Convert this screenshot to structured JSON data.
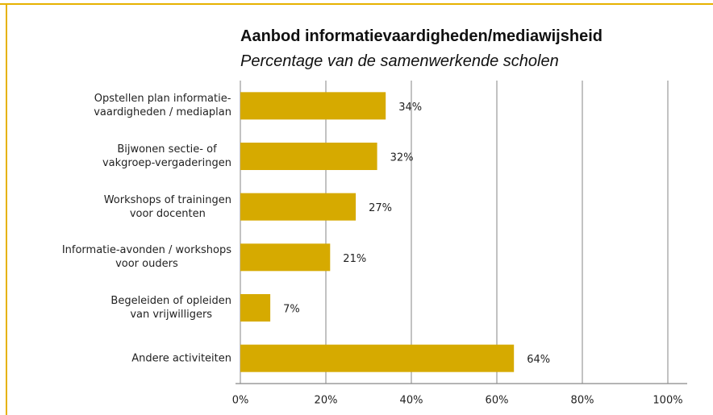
{
  "chart_data": {
    "type": "bar",
    "orientation": "horizontal",
    "title": "Aanbod informatievaardigheden/mediawijsheid",
    "subtitle": "Percentage van de samenwerkende scholen",
    "categories": [
      "Opstellen plan informatie-\nvaardigheden / mediaplan",
      "Bijwonen sectie- of\nvakgroep-vergaderingen",
      "Workshops of trainingen\nvoor docenten",
      "Informatie-avonden / workshops\nvoor ouders",
      "Begeleiden of opleiden\nvan vrijwilligers",
      "Andere activiteiten"
    ],
    "values": [
      34,
      32,
      27,
      21,
      7,
      64
    ],
    "value_labels": [
      "34%",
      "32%",
      "27%",
      "21%",
      "7%",
      "64%"
    ],
    "color": "#d6aa00",
    "xlim": [
      0,
      100
    ],
    "xticks": [
      {
        "value": 0,
        "label": "0%"
      },
      {
        "value": 20,
        "label": "20%"
      },
      {
        "value": 40,
        "label": "40%"
      },
      {
        "value": 60,
        "label": "60%"
      },
      {
        "value": 80,
        "label": "80%"
      },
      {
        "value": 100,
        "label": "100%"
      }
    ],
    "grid": true
  }
}
